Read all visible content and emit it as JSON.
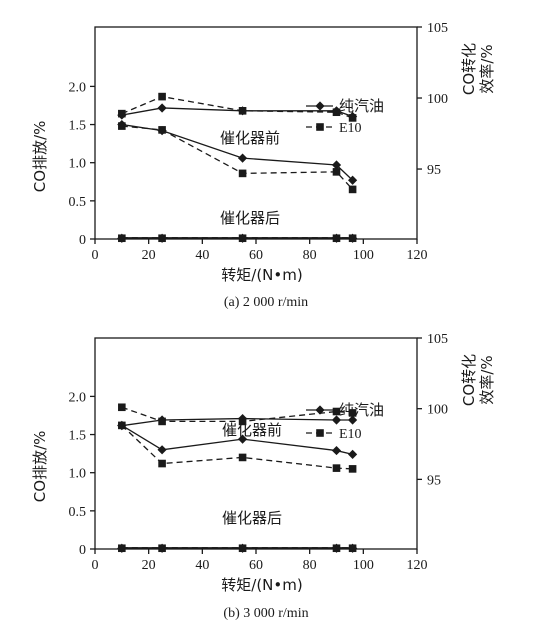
{
  "chart_data": [
    {
      "type": "line",
      "title": "(a)  2 000 r/min",
      "xlabel": "转矩/(N•m)",
      "ylabel": "CO排放/%",
      "ylabel_right": [
        "CO转化",
        "效率/%"
      ],
      "xlim": [
        0,
        120
      ],
      "xticks": [
        "0",
        "20",
        "40",
        "60",
        "80",
        "100",
        "120"
      ],
      "ylim": [
        0,
        2.8
      ],
      "yticks": [
        "0",
        "0.5",
        "1.0",
        "1.5",
        "2.0"
      ],
      "ylim_right": [
        90.8,
        105
      ],
      "yticks_right": [
        "95",
        "100",
        "105"
      ],
      "legend": {
        "position": "right",
        "entries": [
          "纯汽油",
          "E10"
        ]
      },
      "annotations": [
        "催化器前",
        "催化器后"
      ],
      "series": [
        {
          "name": "纯汽油",
          "axis": "left",
          "group": "催化器前",
          "marker": "diamond",
          "dash": "solid",
          "x": [
            10,
            25,
            55,
            90,
            96
          ],
          "y": [
            1.5,
            1.42,
            1.06,
            0.97,
            0.77
          ]
        },
        {
          "name": "E10",
          "axis": "left",
          "group": "催化器前",
          "marker": "square",
          "dash": "dashed",
          "x": [
            10,
            25,
            55,
            90,
            96
          ],
          "y": [
            1.48,
            1.43,
            0.86,
            0.88,
            0.65
          ]
        },
        {
          "name": "纯汽油",
          "axis": "left",
          "group": "催化器后",
          "marker": "diamond",
          "dash": "solid",
          "x": [
            10,
            25,
            55,
            90,
            96
          ],
          "y": [
            0.01,
            0.01,
            0.01,
            0.01,
            0.01
          ]
        },
        {
          "name": "E10",
          "axis": "left",
          "group": "催化器后",
          "marker": "square",
          "dash": "dashed",
          "x": [
            10,
            25,
            55,
            90,
            96
          ],
          "y": [
            0.01,
            0.01,
            0.01,
            0.01,
            0.01
          ]
        },
        {
          "name": "纯汽油",
          "axis": "right",
          "group": "CO转化效率",
          "marker": "diamond",
          "dash": "solid",
          "x": [
            10,
            25,
            55,
            90,
            96
          ],
          "y": [
            98.8,
            99.3,
            99.1,
            99.1,
            98.7
          ]
        },
        {
          "name": "E10",
          "axis": "right",
          "group": "CO转化效率",
          "marker": "square",
          "dash": "dashed",
          "x": [
            10,
            25,
            55,
            90,
            96
          ],
          "y": [
            98.9,
            100.1,
            99.1,
            99.0,
            98.6
          ]
        }
      ]
    },
    {
      "type": "line",
      "title": "(b)  3 000 r/min",
      "xlabel": "转矩/(N•m)",
      "ylabel": "CO排放/%",
      "ylabel_right": [
        "CO转化",
        "效率/%"
      ],
      "xlim": [
        0,
        120
      ],
      "xticks": [
        "0",
        "20",
        "40",
        "60",
        "80",
        "100",
        "120"
      ],
      "ylim": [
        0,
        2.8
      ],
      "yticks": [
        "0",
        "0.5",
        "1.0",
        "1.5",
        "2.0"
      ],
      "ylim_right": [
        90.8,
        105
      ],
      "yticks_right": [
        "95",
        "100",
        "105"
      ],
      "legend": {
        "position": "right",
        "entries": [
          "纯汽油",
          "E10"
        ]
      },
      "annotations": [
        "催化器前",
        "催化器后"
      ],
      "series": [
        {
          "name": "纯汽油",
          "axis": "left",
          "group": "催化器前",
          "marker": "diamond",
          "dash": "solid",
          "x": [
            10,
            25,
            55,
            90,
            96
          ],
          "y": [
            1.62,
            1.3,
            1.44,
            1.29,
            1.24
          ]
        },
        {
          "name": "E10",
          "axis": "left",
          "group": "催化器前",
          "marker": "square",
          "dash": "dashed",
          "x": [
            10,
            25,
            55,
            90,
            96
          ],
          "y": [
            1.62,
            1.12,
            1.2,
            1.06,
            1.05
          ]
        },
        {
          "name": "纯汽油",
          "axis": "left",
          "group": "催化器后",
          "marker": "diamond",
          "dash": "solid",
          "x": [
            10,
            25,
            55,
            90,
            96
          ],
          "y": [
            0.01,
            0.01,
            0.01,
            0.01,
            0.01
          ]
        },
        {
          "name": "E10",
          "axis": "left",
          "group": "催化器后",
          "marker": "square",
          "dash": "dashed",
          "x": [
            10,
            25,
            55,
            90,
            96
          ],
          "y": [
            0.01,
            0.01,
            0.01,
            0.01,
            0.01
          ]
        },
        {
          "name": "纯汽油",
          "axis": "right",
          "group": "CO转化效率",
          "marker": "diamond",
          "dash": "solid",
          "x": [
            10,
            25,
            55,
            90,
            96
          ],
          "y": [
            98.8,
            99.2,
            99.3,
            99.2,
            99.2
          ]
        },
        {
          "name": "E10",
          "axis": "right",
          "group": "CO转化效率",
          "marker": "square",
          "dash": "dashed",
          "x": [
            10,
            25,
            55,
            90,
            96
          ],
          "y": [
            100.1,
            99.1,
            99.1,
            99.8,
            99.7
          ]
        }
      ]
    }
  ]
}
